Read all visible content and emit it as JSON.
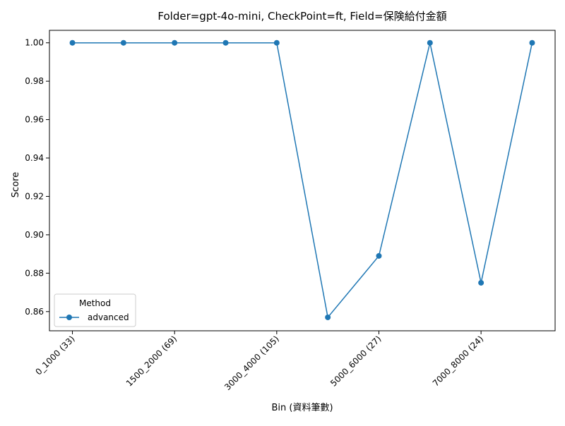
{
  "chart_data": {
    "type": "line",
    "title": "Folder=gpt-4o-mini, CheckPoint=ft, Field=保険給付金額",
    "xlabel": "Bin (資料筆數)",
    "ylabel": "Score",
    "x_tick_labels": [
      "0_1000 (33)",
      "1500_2000 (69)",
      "3000_4000 (105)",
      "5000_6000 (27)",
      "7000_8000 (24)"
    ],
    "x_tick_positions": [
      0,
      2,
      4,
      6,
      8
    ],
    "x": [
      0,
      1,
      2,
      3,
      4,
      5,
      6,
      7,
      8,
      9
    ],
    "xlim": [
      -0.45,
      9.45
    ],
    "ylim": [
      0.85,
      1.0065
    ],
    "y_ticks": [
      "0.86",
      "0.88",
      "0.90",
      "0.92",
      "0.94",
      "0.96",
      "0.98",
      "1.00"
    ],
    "series": [
      {
        "name": "advanced",
        "color": "#1f77b4",
        "marker": "circle",
        "values": [
          1.0,
          1.0,
          1.0,
          1.0,
          1.0,
          0.857,
          0.889,
          1.0,
          0.875,
          1.0
        ]
      }
    ],
    "legend": {
      "title": "Method",
      "position": "lower-left"
    },
    "grid": false
  }
}
